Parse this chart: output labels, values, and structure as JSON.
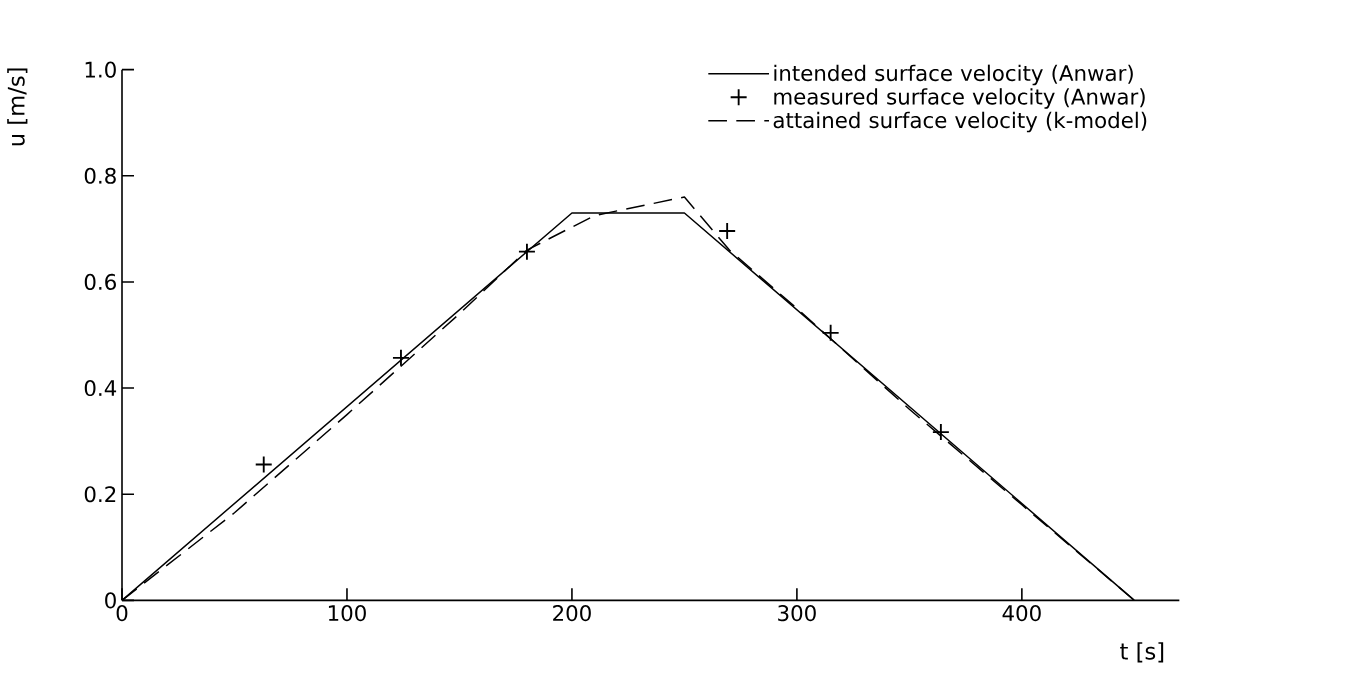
{
  "chart_data": {
    "type": "line",
    "xlabel": "t [s]",
    "ylabel": "u [m/s]",
    "xlim": [
      0,
      470
    ],
    "ylim": [
      0,
      1.0
    ],
    "xticks": [
      0,
      100,
      200,
      300,
      400
    ],
    "yticks": [
      0,
      0.2,
      0.4,
      0.6,
      0.8,
      {
        "value": 1,
        "label": "1.0"
      }
    ],
    "grid": false,
    "legend": "top right",
    "series": [
      {
        "name": "intended surface velocity (Anwar)",
        "line_style": "solid",
        "color": "#000000",
        "x": [
          0,
          200,
          250,
          450
        ],
        "values": [
          0,
          0.73,
          0.73,
          0
        ]
      },
      {
        "name": "measured surface velocity (Anwar)",
        "type": "scatter",
        "marker": "cross",
        "color": "#000000",
        "x": [
          63,
          124,
          180,
          269,
          315,
          364
        ],
        "values": [
          0.256,
          0.457,
          0.657,
          0.696,
          0.504,
          0.317
        ]
      },
      {
        "name": "attained surface velocity (k-model)",
        "line_style": "dashed",
        "color": "#000000",
        "x": [
          0,
          50,
          100,
          150,
          180,
          210,
          250,
          270,
          300,
          350,
          400,
          450
        ],
        "values": [
          0,
          0.165,
          0.35,
          0.54,
          0.66,
          0.725,
          0.76,
          0.66,
          0.55,
          0.36,
          0.18,
          0
        ]
      }
    ]
  }
}
